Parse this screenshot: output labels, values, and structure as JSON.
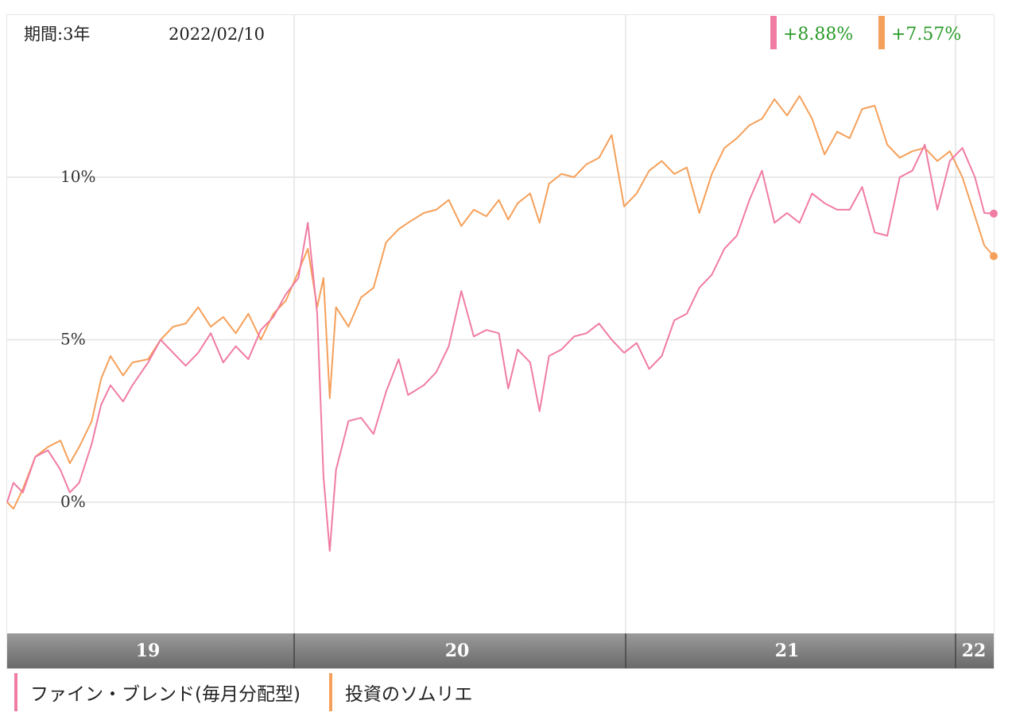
{
  "header": {
    "period_label": "期間:3年",
    "date": "2022/02/10",
    "changes": [
      {
        "text": "+8.88%",
        "color": "#f07ca4"
      },
      {
        "text": "+7.57%",
        "color": "#f5a05a"
      }
    ]
  },
  "legend": [
    {
      "label": "ファイン・ブレンド(毎月分配型)",
      "color": "#f07ca4"
    },
    {
      "label": "投資のソムリエ",
      "color": "#f5a05a"
    }
  ],
  "colors": {
    "pink": "#f07ca4",
    "orange": "#f5a05a",
    "grid": "#e4e4e4",
    "xbar_top": "#9a9a9a",
    "xbar_bottom": "#6a6a6a",
    "change_text": "#2a9a2a"
  },
  "chart_data": {
    "type": "line",
    "title": "",
    "xlabel": "",
    "ylabel": "",
    "x_ticks": [
      "19",
      "20",
      "21",
      "22"
    ],
    "y_ticks": [
      "0%",
      "5%",
      "10%"
    ],
    "ylim": [
      -4,
      15
    ],
    "grid": true,
    "series": [
      {
        "name": "ファイン・ブレンド(毎月分配型)",
        "color": "#f07ca4",
        "end_value": 8.88,
        "points": [
          [
            2019.05,
            0.0
          ],
          [
            2019.07,
            0.6
          ],
          [
            2019.1,
            0.3
          ],
          [
            2019.14,
            1.4
          ],
          [
            2019.18,
            1.6
          ],
          [
            2019.22,
            1.0
          ],
          [
            2019.25,
            0.3
          ],
          [
            2019.28,
            0.6
          ],
          [
            2019.32,
            1.8
          ],
          [
            2019.35,
            3.0
          ],
          [
            2019.38,
            3.6
          ],
          [
            2019.42,
            3.1
          ],
          [
            2019.45,
            3.6
          ],
          [
            2019.5,
            4.3
          ],
          [
            2019.54,
            5.0
          ],
          [
            2019.58,
            4.6
          ],
          [
            2019.62,
            4.2
          ],
          [
            2019.66,
            4.6
          ],
          [
            2019.7,
            5.2
          ],
          [
            2019.74,
            4.3
          ],
          [
            2019.78,
            4.8
          ],
          [
            2019.82,
            4.4
          ],
          [
            2019.86,
            5.3
          ],
          [
            2019.9,
            5.7
          ],
          [
            2019.94,
            6.4
          ],
          [
            2019.98,
            6.9
          ],
          [
            2020.01,
            8.6
          ],
          [
            2020.04,
            5.8
          ],
          [
            2020.06,
            0.8
          ],
          [
            2020.08,
            -1.5
          ],
          [
            2020.1,
            1.0
          ],
          [
            2020.14,
            2.5
          ],
          [
            2020.18,
            2.6
          ],
          [
            2020.22,
            2.1
          ],
          [
            2020.26,
            3.4
          ],
          [
            2020.3,
            4.4
          ],
          [
            2020.33,
            3.3
          ],
          [
            2020.38,
            3.6
          ],
          [
            2020.42,
            4.0
          ],
          [
            2020.46,
            4.8
          ],
          [
            2020.5,
            6.5
          ],
          [
            2020.54,
            5.1
          ],
          [
            2020.58,
            5.3
          ],
          [
            2020.62,
            5.2
          ],
          [
            2020.65,
            3.5
          ],
          [
            2020.68,
            4.7
          ],
          [
            2020.72,
            4.3
          ],
          [
            2020.75,
            2.8
          ],
          [
            2020.78,
            4.5
          ],
          [
            2020.82,
            4.7
          ],
          [
            2020.86,
            5.1
          ],
          [
            2020.9,
            5.2
          ],
          [
            2020.94,
            5.5
          ],
          [
            2020.98,
            5.0
          ],
          [
            2021.02,
            4.6
          ],
          [
            2021.06,
            4.9
          ],
          [
            2021.1,
            4.1
          ],
          [
            2021.14,
            4.5
          ],
          [
            2021.18,
            5.6
          ],
          [
            2021.22,
            5.8
          ],
          [
            2021.26,
            6.6
          ],
          [
            2021.3,
            7.0
          ],
          [
            2021.34,
            7.8
          ],
          [
            2021.38,
            8.2
          ],
          [
            2021.42,
            9.3
          ],
          [
            2021.46,
            10.2
          ],
          [
            2021.5,
            8.6
          ],
          [
            2021.54,
            8.9
          ],
          [
            2021.58,
            8.6
          ],
          [
            2021.62,
            9.5
          ],
          [
            2021.66,
            9.2
          ],
          [
            2021.7,
            9.0
          ],
          [
            2021.74,
            9.0
          ],
          [
            2021.78,
            9.7
          ],
          [
            2021.82,
            8.3
          ],
          [
            2021.86,
            8.2
          ],
          [
            2021.9,
            10.0
          ],
          [
            2021.94,
            10.2
          ],
          [
            2021.98,
            11.0
          ],
          [
            2022.02,
            9.0
          ],
          [
            2022.06,
            10.5
          ],
          [
            2022.1,
            10.9
          ],
          [
            2022.14,
            10.0
          ],
          [
            2022.17,
            8.9
          ],
          [
            2022.2,
            8.88
          ]
        ]
      },
      {
        "name": "投資のソムリエ",
        "color": "#f5a05a",
        "end_value": 7.57,
        "points": [
          [
            2019.05,
            0.0
          ],
          [
            2019.07,
            -0.2
          ],
          [
            2019.1,
            0.4
          ],
          [
            2019.14,
            1.4
          ],
          [
            2019.18,
            1.7
          ],
          [
            2019.22,
            1.9
          ],
          [
            2019.25,
            1.2
          ],
          [
            2019.28,
            1.7
          ],
          [
            2019.32,
            2.5
          ],
          [
            2019.35,
            3.8
          ],
          [
            2019.38,
            4.5
          ],
          [
            2019.42,
            3.9
          ],
          [
            2019.45,
            4.3
          ],
          [
            2019.5,
            4.4
          ],
          [
            2019.54,
            5.0
          ],
          [
            2019.58,
            5.4
          ],
          [
            2019.62,
            5.5
          ],
          [
            2019.66,
            6.0
          ],
          [
            2019.7,
            5.4
          ],
          [
            2019.74,
            5.7
          ],
          [
            2019.78,
            5.2
          ],
          [
            2019.82,
            5.8
          ],
          [
            2019.86,
            5.0
          ],
          [
            2019.9,
            5.8
          ],
          [
            2019.94,
            6.2
          ],
          [
            2019.98,
            7.1
          ],
          [
            2020.01,
            7.8
          ],
          [
            2020.04,
            6.0
          ],
          [
            2020.06,
            6.9
          ],
          [
            2020.08,
            3.2
          ],
          [
            2020.1,
            6.0
          ],
          [
            2020.14,
            5.4
          ],
          [
            2020.18,
            6.3
          ],
          [
            2020.22,
            6.6
          ],
          [
            2020.26,
            8.0
          ],
          [
            2020.3,
            8.4
          ],
          [
            2020.33,
            8.6
          ],
          [
            2020.38,
            8.9
          ],
          [
            2020.42,
            9.0
          ],
          [
            2020.46,
            9.3
          ],
          [
            2020.5,
            8.5
          ],
          [
            2020.54,
            9.0
          ],
          [
            2020.58,
            8.8
          ],
          [
            2020.62,
            9.3
          ],
          [
            2020.65,
            8.7
          ],
          [
            2020.68,
            9.2
          ],
          [
            2020.72,
            9.5
          ],
          [
            2020.75,
            8.6
          ],
          [
            2020.78,
            9.8
          ],
          [
            2020.82,
            10.1
          ],
          [
            2020.86,
            10.0
          ],
          [
            2020.9,
            10.4
          ],
          [
            2020.94,
            10.6
          ],
          [
            2020.98,
            11.3
          ],
          [
            2021.02,
            9.1
          ],
          [
            2021.06,
            9.5
          ],
          [
            2021.1,
            10.2
          ],
          [
            2021.14,
            10.5
          ],
          [
            2021.18,
            10.1
          ],
          [
            2021.22,
            10.3
          ],
          [
            2021.26,
            8.9
          ],
          [
            2021.3,
            10.1
          ],
          [
            2021.34,
            10.9
          ],
          [
            2021.38,
            11.2
          ],
          [
            2021.42,
            11.6
          ],
          [
            2021.46,
            11.8
          ],
          [
            2021.5,
            12.4
          ],
          [
            2021.54,
            11.9
          ],
          [
            2021.58,
            12.5
          ],
          [
            2021.62,
            11.8
          ],
          [
            2021.66,
            10.7
          ],
          [
            2021.7,
            11.4
          ],
          [
            2021.74,
            11.2
          ],
          [
            2021.78,
            12.1
          ],
          [
            2021.82,
            12.2
          ],
          [
            2021.86,
            11.0
          ],
          [
            2021.9,
            10.6
          ],
          [
            2021.94,
            10.8
          ],
          [
            2021.98,
            10.9
          ],
          [
            2022.02,
            10.5
          ],
          [
            2022.06,
            10.8
          ],
          [
            2022.1,
            10.0
          ],
          [
            2022.14,
            8.8
          ],
          [
            2022.17,
            7.9
          ],
          [
            2022.2,
            7.57
          ]
        ]
      }
    ]
  }
}
